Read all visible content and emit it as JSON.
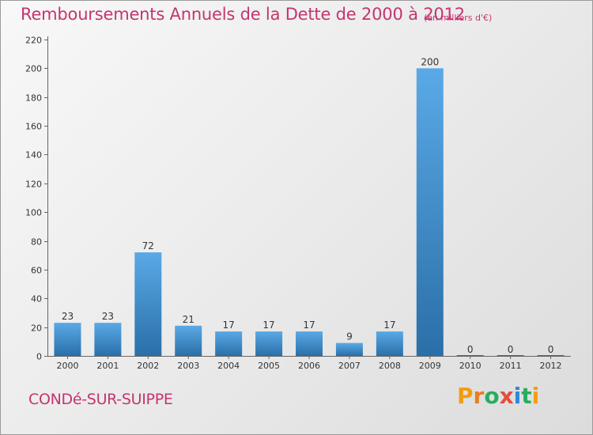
{
  "header": {
    "title": "Remboursements Annuels de la Dette de 2000 à 2012",
    "unit": "(en milliers d'€)"
  },
  "footer": {
    "commune": "CONDé-SUR-SUIPPE",
    "logo_text": "Proxiti",
    "logo_colors": [
      "#f39c12",
      "#e67e22",
      "#27ae60",
      "#e74c3c",
      "#2e86de",
      "#27ae60",
      "#f39c12"
    ]
  },
  "colors": {
    "title": "#c4356f",
    "bar_top": "#5aa9e6",
    "bar_bottom": "#2a6fa8",
    "axis": "#666666",
    "grid": "#e0e0e0"
  },
  "chart_data": {
    "type": "bar",
    "categories": [
      "2000",
      "2001",
      "2002",
      "2003",
      "2004",
      "2005",
      "2006",
      "2007",
      "2008",
      "2009",
      "2010",
      "2011",
      "2012"
    ],
    "values": [
      23,
      23,
      72,
      21,
      17,
      17,
      17,
      9,
      17,
      200,
      0,
      0,
      0
    ],
    "data_labels": [
      "23",
      "23",
      "72",
      "21",
      "17",
      "17",
      "17",
      "9",
      "17",
      "200",
      "0",
      "0",
      "0"
    ],
    "ylim": [
      0,
      220
    ],
    "yticks": [
      "0",
      "20",
      "40",
      "60",
      "80",
      "100",
      "120",
      "140",
      "160",
      "180",
      "200",
      "220"
    ],
    "grid": false,
    "title": "Remboursements Annuels de la Dette de 2000 à 2012",
    "xlabel": "",
    "ylabel": ""
  }
}
